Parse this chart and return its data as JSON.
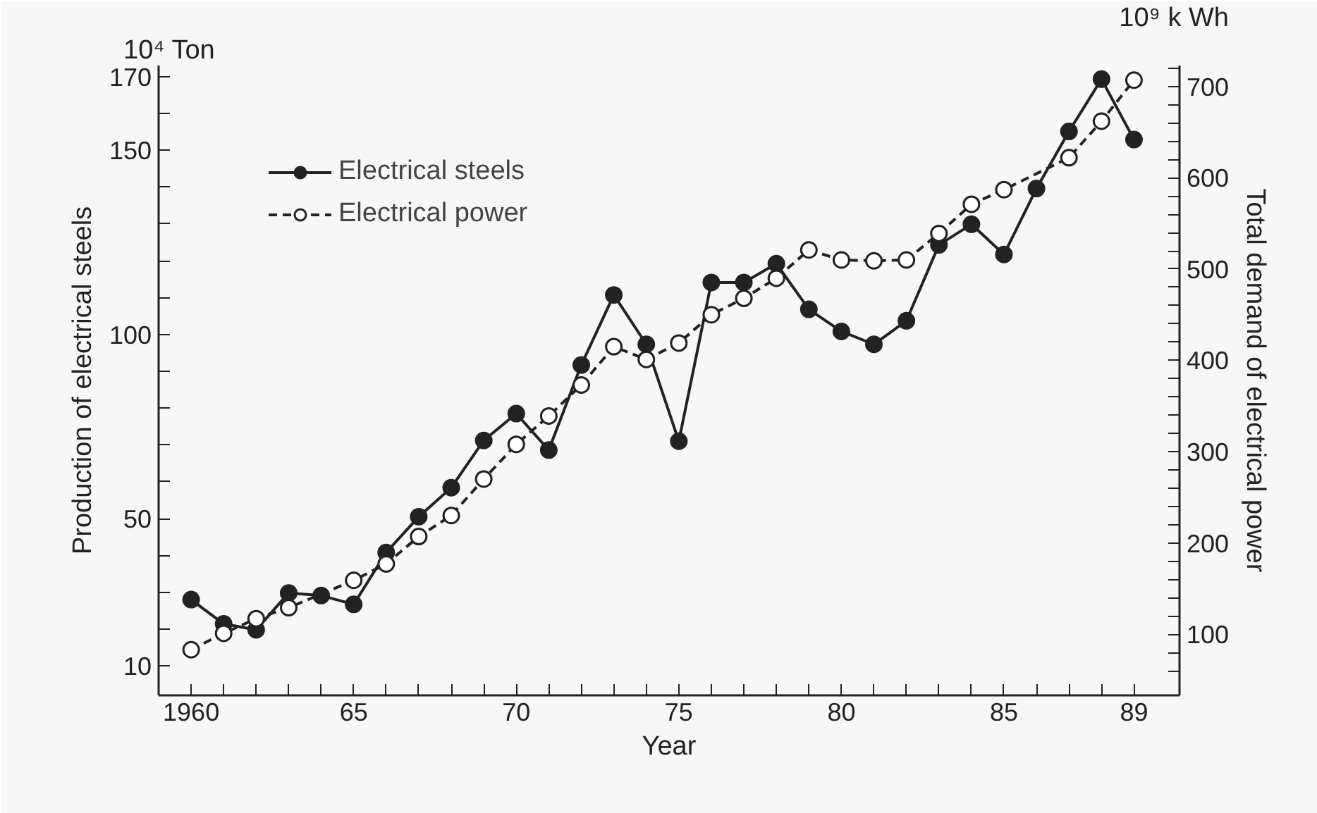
{
  "chart_data": {
    "type": "line",
    "xlabel": "Year",
    "ylabel": "Production of electrical steels",
    "y2label": "Total demand of electrical power",
    "annotations": [
      "10⁴ Ton",
      "10⁹ k Wh"
    ],
    "x": [
      1960,
      1961,
      1962,
      1963,
      1964,
      1965,
      1966,
      1967,
      1968,
      1969,
      1970,
      1971,
      1972,
      1973,
      1974,
      1975,
      1976,
      1977,
      1978,
      1979,
      1980,
      1981,
      1982,
      1983,
      1984,
      1985,
      1986,
      1987,
      1988,
      1989
    ],
    "series": [
      {
        "name": "Electrical steels",
        "color": "#222222",
        "line_style": "solid",
        "values": [
          28.0,
          21.4,
          19.8,
          29.8,
          29.1,
          26.7,
          40.8,
          50.5,
          58.4,
          71.2,
          78.5,
          68.6,
          91.7,
          110.7,
          97.3,
          71.0,
          114.1,
          114.1,
          119.2,
          106.8,
          100.8,
          97.3,
          103.7,
          124.3,
          129.9,
          121.7,
          139.6,
          155.1,
          169.3,
          152.9
        ]
      },
      {
        "name": "Electrical power",
        "color": "#222222",
        "line_style": "dashed",
        "axis": "y2",
        "values": [
          83,
          101,
          117,
          129,
          null,
          159,
          177,
          207,
          230,
          270,
          308,
          339,
          373,
          415,
          401,
          419,
          450,
          468,
          490,
          521,
          510,
          509,
          510,
          539,
          571,
          587,
          null,
          622,
          662,
          707
        ]
      }
    ],
    "marker": "circle",
    "legend": "top left",
    "grid": false,
    "xlim": [
      1959.0,
      1990.4
    ],
    "xticks": [
      {
        "value": 1960,
        "label": "1960"
      },
      {
        "value": 1961,
        "label": null
      },
      {
        "value": 1962,
        "label": null
      },
      {
        "value": 1963,
        "label": null
      },
      {
        "value": 1964,
        "label": null
      },
      {
        "value": 1965,
        "label": "65"
      },
      {
        "value": 1966,
        "label": null
      },
      {
        "value": 1967,
        "label": null
      },
      {
        "value": 1968,
        "label": null
      },
      {
        "value": 1969,
        "label": null
      },
      {
        "value": 1970,
        "label": "70"
      },
      {
        "value": 1971,
        "label": null
      },
      {
        "value": 1972,
        "label": null
      },
      {
        "value": 1973,
        "label": null
      },
      {
        "value": 1974,
        "label": null
      },
      {
        "value": 1975,
        "label": "75"
      },
      {
        "value": 1976,
        "label": null
      },
      {
        "value": 1977,
        "label": null
      },
      {
        "value": 1978,
        "label": null
      },
      {
        "value": 1979,
        "label": null
      },
      {
        "value": 1980,
        "label": "80"
      },
      {
        "value": 1981,
        "label": null
      },
      {
        "value": 1982,
        "label": null
      },
      {
        "value": 1983,
        "label": null
      },
      {
        "value": 1984,
        "label": null
      },
      {
        "value": 1985,
        "label": "85"
      },
      {
        "value": 1986,
        "label": null
      },
      {
        "value": 1987,
        "label": null
      },
      {
        "value": 1988,
        "label": null
      },
      {
        "value": 1989,
        "label": "89"
      }
    ],
    "ylim": [
      2,
      173
    ],
    "yticks": [
      10,
      {
        "value": 20,
        "label": null
      },
      {
        "value": 30,
        "label": null
      },
      {
        "value": 40,
        "label": null
      },
      50,
      {
        "value": 60,
        "label": null
      },
      {
        "value": 70,
        "label": null
      },
      {
        "value": 80,
        "label": null
      },
      {
        "value": 90,
        "label": null
      },
      100,
      {
        "value": 110,
        "label": null
      },
      {
        "value": 120,
        "label": null
      },
      {
        "value": 130,
        "label": null
      },
      {
        "value": 140,
        "label": null
      },
      150,
      {
        "value": 160,
        "label": null
      },
      170
    ],
    "y2lim": [
      33,
      723
    ],
    "y2ticks": [
      {
        "value": 60,
        "label": null
      },
      {
        "value": 80,
        "label": null
      },
      100,
      {
        "value": 120,
        "label": null
      },
      {
        "value": 140,
        "label": null
      },
      {
        "value": 160,
        "label": null
      },
      {
        "value": 180,
        "label": null
      },
      200,
      {
        "value": 220,
        "label": null
      },
      {
        "value": 240,
        "label": null
      },
      {
        "value": 260,
        "label": null
      },
      {
        "value": 280,
        "label": null
      },
      300,
      {
        "value": 320,
        "label": null
      },
      {
        "value": 340,
        "label": null
      },
      {
        "value": 360,
        "label": null
      },
      {
        "value": 380,
        "label": null
      },
      400,
      {
        "value": 420,
        "label": null
      },
      {
        "value": 440,
        "label": null
      },
      {
        "value": 460,
        "label": null
      },
      {
        "value": 480,
        "label": null
      },
      500,
      {
        "value": 520,
        "label": null
      },
      {
        "value": 540,
        "label": null
      },
      {
        "value": 560,
        "label": null
      },
      {
        "value": 580,
        "label": null
      },
      600,
      {
        "value": 620,
        "label": null
      },
      {
        "value": 640,
        "label": null
      },
      {
        "value": 660,
        "label": null
      },
      {
        "value": 680,
        "label": null
      },
      700,
      {
        "value": 720,
        "label": null
      }
    ]
  }
}
